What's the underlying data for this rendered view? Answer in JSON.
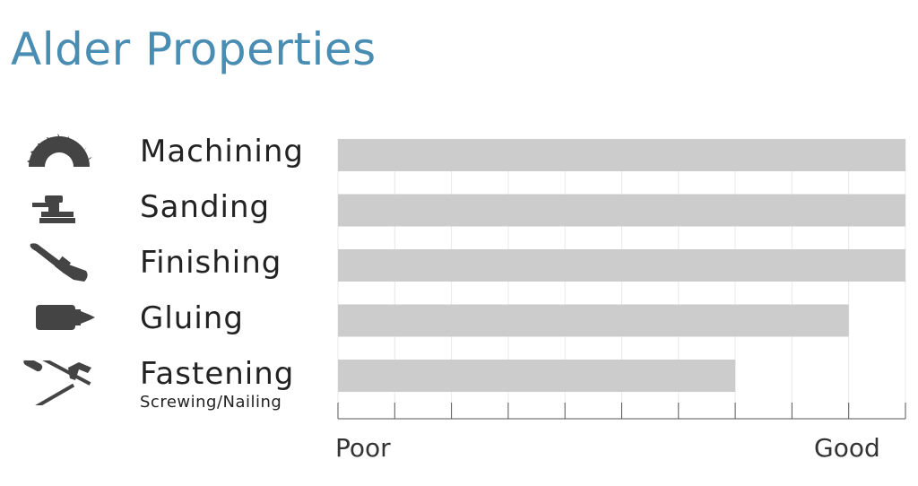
{
  "title": "Alder Properties",
  "chart_data": {
    "type": "bar",
    "orientation": "horizontal",
    "categories": [
      "Machining",
      "Sanding",
      "Finishing",
      "Gluing",
      "Fastening"
    ],
    "category_sublabels": {
      "Fastening": "Screwing/Nailing"
    },
    "values": [
      10,
      10,
      10,
      9,
      7
    ],
    "xlim": [
      0,
      10
    ],
    "x_scale_labels": {
      "min": "Poor",
      "max": "Good"
    },
    "bar_color": "#cccccc",
    "grid": true
  },
  "icons": [
    "saw-blade-icon",
    "sander-icon",
    "paintbrush-icon",
    "glue-bottle-icon",
    "screwdriver-hammer-icon"
  ],
  "colors": {
    "title": "#4a8db3",
    "bar": "#cccccc",
    "text": "#222222"
  }
}
